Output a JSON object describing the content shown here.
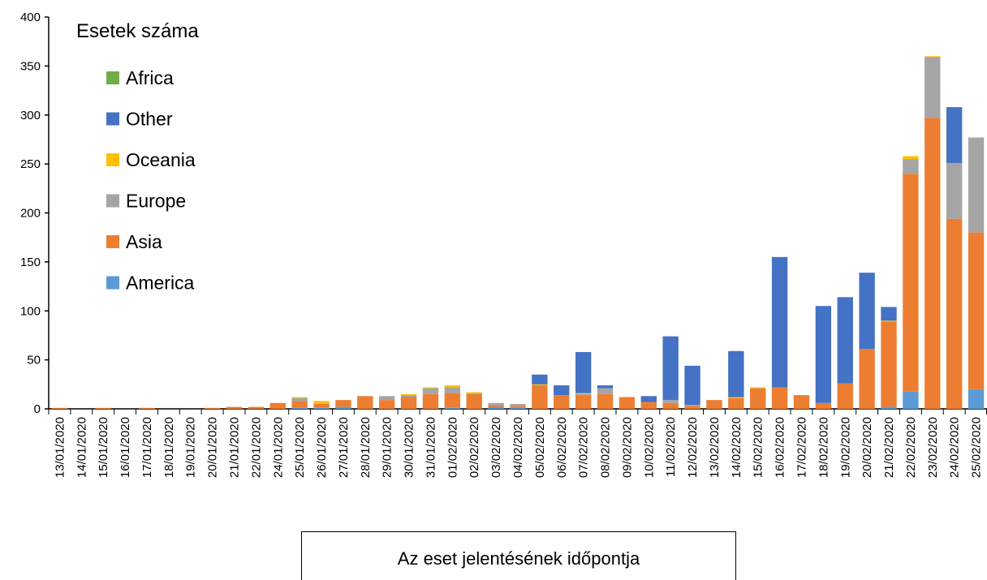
{
  "chart_data": {
    "type": "bar",
    "stacked": true,
    "ylabel": "Esetek száma",
    "xlabel": "Az eset jelentésének időpontja",
    "ylim": [
      0,
      400
    ],
    "yticks": [
      0,
      50,
      100,
      150,
      200,
      250,
      300,
      350,
      400
    ],
    "legend_position": "top-left",
    "grid": false,
    "categories": [
      "13/01/2020",
      "14/01/2020",
      "15/01/2020",
      "16/01/2020",
      "17/01/2020",
      "18/01/2020",
      "19/01/2020",
      "20/01/2020",
      "21/01/2020",
      "22/01/2020",
      "24/01/2020",
      "25/01/2020",
      "26/01/2020",
      "27/01/2020",
      "28/01/2020",
      "29/01/2020",
      "30/01/2020",
      "31/01/2020",
      "01/02/2020",
      "02/02/2020",
      "03/02/2020",
      "04/02/2020",
      "05/02/2020",
      "06/02/2020",
      "07/02/2020",
      "08/02/2020",
      "09/02/2020",
      "10/02/2020",
      "11/02/2020",
      "12/02/2020",
      "13/02/2020",
      "14/02/2020",
      "15/02/2020",
      "16/02/2020",
      "17/02/2020",
      "18/02/2020",
      "19/02/2020",
      "20/02/2020",
      "21/02/2020",
      "22/02/2020",
      "23/02/2020",
      "24/02/2020",
      "25/02/2020"
    ],
    "series": [
      {
        "name": "America",
        "color": "#5B9BD5",
        "values": [
          0,
          0,
          0,
          0,
          0,
          0,
          0,
          0,
          0,
          0,
          0,
          1,
          1,
          2,
          0,
          0,
          0,
          0,
          1,
          0,
          2,
          1,
          0,
          0,
          0,
          0,
          0,
          0,
          0,
          0,
          0,
          0,
          0,
          0,
          0,
          0,
          0,
          0,
          2,
          18,
          0,
          0,
          20
        ]
      },
      {
        "name": "Asia",
        "color": "#ED7D31",
        "values": [
          1,
          0,
          1,
          0,
          1,
          0,
          0,
          1,
          2,
          2,
          6,
          7,
          4,
          7,
          13,
          9,
          12,
          15,
          15,
          15,
          2,
          2,
          24,
          14,
          14,
          15,
          12,
          7,
          6,
          3,
          9,
          11,
          21,
          22,
          14,
          6,
          26,
          61,
          87,
          222,
          297,
          194,
          160
        ]
      },
      {
        "name": "Europe",
        "color": "#A5A5A5",
        "values": [
          0,
          0,
          0,
          0,
          0,
          0,
          0,
          0,
          0,
          0,
          0,
          3,
          0,
          0,
          0,
          4,
          2,
          6,
          6,
          1,
          2,
          2,
          0,
          0,
          1,
          6,
          0,
          0,
          3,
          1,
          0,
          0,
          0,
          0,
          0,
          0,
          0,
          0,
          0,
          15,
          62,
          57,
          97
        ]
      },
      {
        "name": "Oceania",
        "color": "#FFC000",
        "values": [
          0,
          0,
          0,
          0,
          0,
          0,
          0,
          0,
          0,
          0,
          0,
          1,
          3,
          0,
          0,
          0,
          1,
          1,
          2,
          1,
          0,
          0,
          1,
          0,
          1,
          0,
          0,
          0,
          0,
          0,
          0,
          1,
          1,
          0,
          0,
          0,
          0,
          0,
          1,
          3,
          1,
          0,
          0
        ]
      },
      {
        "name": "Other",
        "color": "#4472C4",
        "values": [
          0,
          0,
          0,
          0,
          0,
          0,
          0,
          0,
          0,
          0,
          0,
          0,
          0,
          0,
          0,
          0,
          0,
          0,
          0,
          0,
          0,
          0,
          10,
          10,
          42,
          3,
          0,
          6,
          65,
          40,
          0,
          47,
          0,
          133,
          0,
          99,
          88,
          78,
          14,
          0,
          0,
          57,
          0
        ]
      },
      {
        "name": "Africa",
        "color": "#70AD47",
        "values": [
          0,
          0,
          0,
          0,
          0,
          0,
          0,
          0,
          0,
          0,
          0,
          0,
          0,
          0,
          0,
          0,
          0,
          0,
          0,
          0,
          0,
          0,
          0,
          0,
          0,
          0,
          0,
          0,
          0,
          0,
          0,
          0,
          0,
          0,
          0,
          0,
          0,
          0,
          0,
          0,
          0,
          0,
          0
        ]
      }
    ],
    "legend_order": [
      "Africa",
      "Other",
      "Oceania",
      "Europe",
      "Asia",
      "America"
    ]
  }
}
